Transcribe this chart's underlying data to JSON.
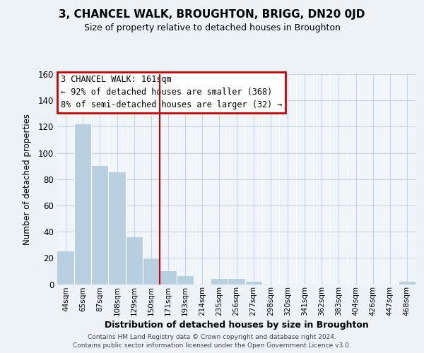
{
  "title": "3, CHANCEL WALK, BROUGHTON, BRIGG, DN20 0JD",
  "subtitle": "Size of property relative to detached houses in Broughton",
  "xlabel": "Distribution of detached houses by size in Broughton",
  "ylabel": "Number of detached properties",
  "bin_labels": [
    "44sqm",
    "65sqm",
    "87sqm",
    "108sqm",
    "129sqm",
    "150sqm",
    "171sqm",
    "193sqm",
    "214sqm",
    "235sqm",
    "256sqm",
    "277sqm",
    "298sqm",
    "320sqm",
    "341sqm",
    "362sqm",
    "383sqm",
    "404sqm",
    "426sqm",
    "447sqm",
    "468sqm"
  ],
  "bar_heights": [
    25,
    122,
    90,
    85,
    36,
    19,
    10,
    6,
    0,
    4,
    4,
    2,
    0,
    0,
    0,
    0,
    0,
    0,
    0,
    0,
    2
  ],
  "bar_color": "#b8cfe0",
  "ylim": [
    0,
    160
  ],
  "yticks": [
    0,
    20,
    40,
    60,
    80,
    100,
    120,
    140,
    160
  ],
  "property_line_x": 5.5,
  "property_line_color": "#cc0000",
  "annotation_title": "3 CHANCEL WALK: 161sqm",
  "annotation_line1": "← 92% of detached houses are smaller (368)",
  "annotation_line2": "8% of semi-detached houses are larger (32) →",
  "annotation_box_color": "#cc0000",
  "footer1": "Contains HM Land Registry data © Crown copyright and database right 2024.",
  "footer2": "Contains public sector information licensed under the Open Government Licence v3.0.",
  "background_color": "#edf2f7",
  "plot_bg_color": "#f0f5fa",
  "grid_color": "#c5d5e5"
}
